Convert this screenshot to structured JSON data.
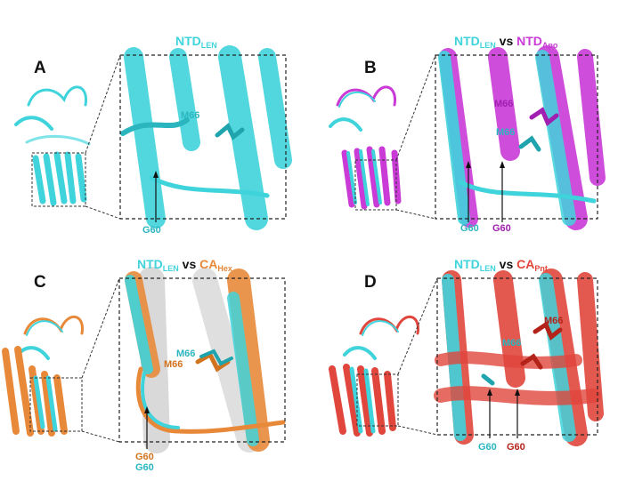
{
  "colors": {
    "len": "#3fd3dc",
    "apo": "#c93ad6",
    "hex": "#e8893a",
    "pnt": "#e0463c",
    "gray": "#c9c9c9"
  },
  "panels": {
    "a": {
      "label": "A",
      "title_len": "NTD",
      "title_len_sub": "LEN",
      "labels": {
        "m66_len": "M66",
        "g60_len": "G60"
      }
    },
    "b": {
      "label": "B",
      "title_len": "NTD",
      "title_len_sub": "LEN",
      "vs": "vs",
      "title_other": "NTD",
      "title_other_sub": "Apo",
      "labels": {
        "m66_other": "M66",
        "m66_len": "M66",
        "g60_len": "G60",
        "g60_other": "G60"
      }
    },
    "c": {
      "label": "C",
      "title_len": "NTD",
      "title_len_sub": "LEN",
      "vs": "vs",
      "title_other": "CA",
      "title_other_sub": "Hex",
      "labels": {
        "m66_len": "M66",
        "m66_other": "M66",
        "g60_other": "G60",
        "g60_len": "G60"
      }
    },
    "d": {
      "label": "D",
      "title_len": "NTD",
      "title_len_sub": "LEN",
      "vs": "vs",
      "title_other": "CA",
      "title_other_sub": "Pnt",
      "labels": {
        "m66_other": "M66",
        "m66_len": "M66",
        "g60_len": "G60",
        "g60_other": "G60"
      }
    }
  }
}
